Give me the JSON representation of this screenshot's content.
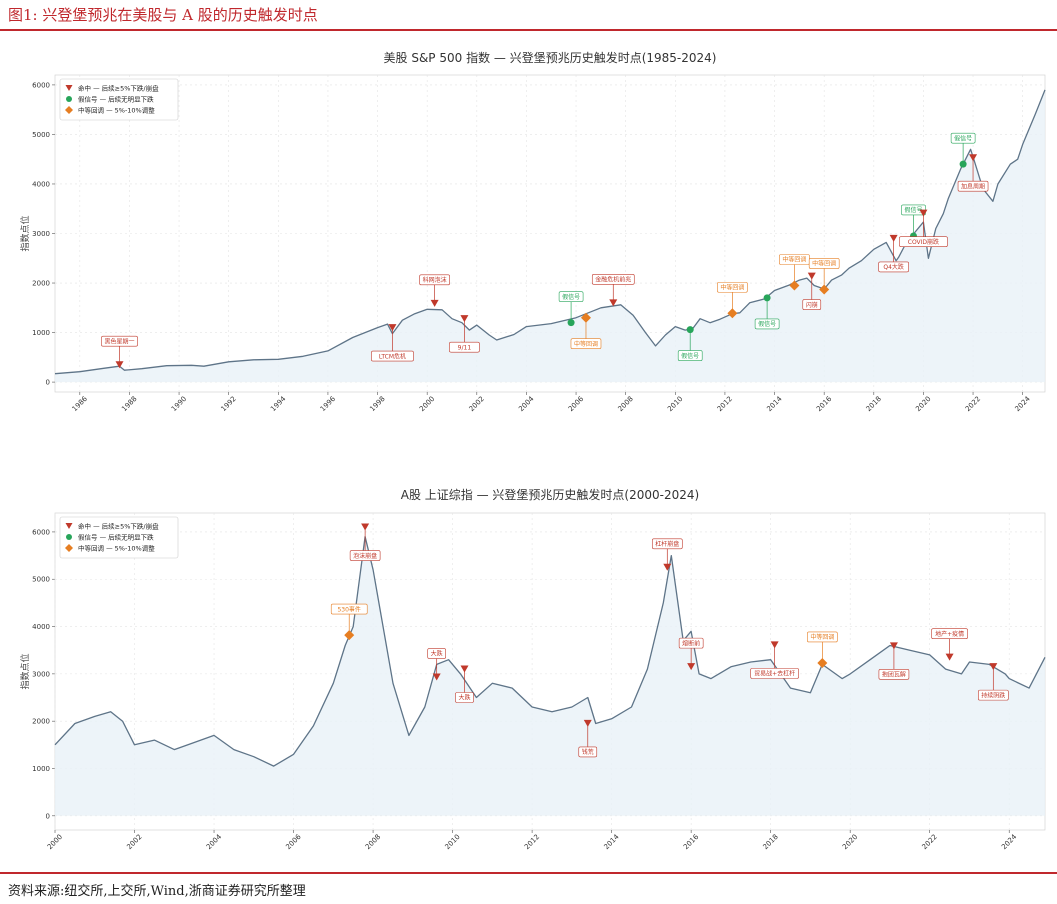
{
  "figure": {
    "title": "图1:   兴登堡预兆在美股与 A 股的历史触发时点",
    "source": "资料来源:纽交所,上交所,Wind,浙商证券研究所整理"
  },
  "colors": {
    "accent": "#c0282d",
    "hit": "#c0392b",
    "false": "#27a55a",
    "medium": "#e67e22",
    "line": "#5e7488",
    "fill": "#e8f1f8"
  },
  "legend": {
    "hit": "命中 — 后续≥5%下跌/崩盘",
    "false": "假信号 — 后续无明显下跌",
    "medium": "中等回调 — 5%-10%调整"
  },
  "chart_data": [
    {
      "type": "line",
      "title": "美股 S&P 500 指数 — 兴登堡预兆历史触发时点(1985-2024)",
      "ylabel": "指数点位",
      "xlim": [
        1985,
        2024.9
      ],
      "ylim": [
        -200,
        6200
      ],
      "grid": true,
      "legend_position": "top-left",
      "xticks": [
        1986,
        1988,
        1990,
        1992,
        1994,
        1996,
        1998,
        2000,
        2002,
        2004,
        2006,
        2008,
        2010,
        2012,
        2014,
        2016,
        2018,
        2020,
        2022,
        2024
      ],
      "yticks": [
        0,
        1000,
        2000,
        3000,
        4000,
        5000,
        6000
      ],
      "series": [
        {
          "x": [
            1985,
            1986,
            1987,
            1987.6,
            1987.8,
            1988.5,
            1989.5,
            1990.5,
            1991,
            1992,
            1993,
            1994,
            1995,
            1996,
            1997,
            1998,
            1998.4,
            1998.6,
            1999,
            1999.5,
            2000,
            2000.6,
            2001,
            2001.4,
            2001.7,
            2002,
            2002.5,
            2002.8,
            2003.5,
            2004,
            2005,
            2006,
            2007,
            2007.8,
            2008.3,
            2008.8,
            2009.2,
            2009.6,
            2010,
            2010.4,
            2010.7,
            2011,
            2011.4,
            2011.8,
            2012.3,
            2012.6,
            2013,
            2013.6,
            2014,
            2014.6,
            2015,
            2015.3,
            2015.6,
            2016,
            2016.3,
            2016.7,
            2017,
            2017.5,
            2018,
            2018.5,
            2018.9,
            2019,
            2019.4,
            2019.6,
            2020,
            2020.2,
            2020.5,
            2020.8,
            2021,
            2021.5,
            2021.9,
            2022,
            2022.4,
            2022.8,
            2023,
            2023.5,
            2023.8,
            2024,
            2024.5,
            2024.9
          ],
          "values": [
            170,
            210,
            280,
            320,
            240,
            270,
            330,
            340,
            320,
            410,
            450,
            460,
            520,
            630,
            900,
            1100,
            1170,
            980,
            1250,
            1380,
            1470,
            1460,
            1280,
            1200,
            1050,
            1150,
            950,
            850,
            960,
            1120,
            1180,
            1300,
            1500,
            1560,
            1350,
            1000,
            730,
            950,
            1120,
            1050,
            1080,
            1280,
            1200,
            1270,
            1380,
            1400,
            1600,
            1680,
            1850,
            1960,
            2060,
            2100,
            1950,
            1880,
            2060,
            2160,
            2300,
            2450,
            2680,
            2820,
            2450,
            2520,
            2900,
            2990,
            3230,
            2500,
            3100,
            3400,
            3700,
            4300,
            4700,
            4550,
            3900,
            3650,
            4000,
            4400,
            4500,
            4800,
            5400,
            5900
          ]
        }
      ],
      "events": [
        {
          "x": 1987.6,
          "y": 300,
          "kind": "hit",
          "label": "黑色星期一",
          "pos": "above"
        },
        {
          "x": 1998.6,
          "y": 1050,
          "kind": "hit",
          "label": "LTCM危机",
          "pos": "below"
        },
        {
          "x": 2000.3,
          "y": 1540,
          "kind": "hit",
          "label": "科网泡沫",
          "pos": "above"
        },
        {
          "x": 2001.5,
          "y": 1230,
          "kind": "hit",
          "label": "9/11",
          "pos": "below"
        },
        {
          "x": 2005.8,
          "y": 1200,
          "kind": "false",
          "label": "假信号",
          "pos": "above"
        },
        {
          "x": 2006.4,
          "y": 1300,
          "kind": "medium",
          "label": "中等回调",
          "pos": "below"
        },
        {
          "x": 2007.5,
          "y": 1550,
          "kind": "hit",
          "label": "金融危机前兆",
          "pos": "above"
        },
        {
          "x": 2010.6,
          "y": 1060,
          "kind": "false",
          "label": "假信号",
          "pos": "below"
        },
        {
          "x": 2012.3,
          "y": 1390,
          "kind": "medium",
          "label": "中等回调",
          "pos": "above"
        },
        {
          "x": 2013.7,
          "y": 1700,
          "kind": "false",
          "label": "假信号",
          "pos": "below"
        },
        {
          "x": 2014.8,
          "y": 1950,
          "kind": "medium",
          "label": "中等回调",
          "pos": "above"
        },
        {
          "x": 2015.5,
          "y": 2090,
          "kind": "hit",
          "label": "闪崩",
          "pos": "below"
        },
        {
          "x": 2016.0,
          "y": 1870,
          "kind": "medium",
          "label": "中等回调",
          "pos": "above"
        },
        {
          "x": 2018.8,
          "y": 2850,
          "kind": "hit",
          "label": "Q4大跌",
          "pos": "below"
        },
        {
          "x": 2019.6,
          "y": 2950,
          "kind": "false",
          "label": "假信号",
          "pos": "above"
        },
        {
          "x": 2020.0,
          "y": 3360,
          "kind": "hit",
          "label": "COVID崩跌",
          "pos": "below"
        },
        {
          "x": 2021.6,
          "y": 4400,
          "kind": "false",
          "label": "假信号",
          "pos": "above"
        },
        {
          "x": 2022.0,
          "y": 4480,
          "kind": "hit",
          "label": "加息周期",
          "pos": "below"
        }
      ]
    },
    {
      "type": "line",
      "title": "A股 上证综指 — 兴登堡预兆历史触发时点(2000-2024)",
      "ylabel": "指数点位",
      "xlim": [
        2000,
        2024.9
      ],
      "ylim": [
        -300,
        6400
      ],
      "grid": true,
      "legend_position": "top-left",
      "xticks": [
        2000,
        2002,
        2004,
        2006,
        2008,
        2010,
        2012,
        2014,
        2016,
        2018,
        2020,
        2022,
        2024
      ],
      "yticks": [
        0,
        1000,
        2000,
        3000,
        4000,
        5000,
        6000
      ],
      "series": [
        {
          "x": [
            2000,
            2000.5,
            2001,
            2001.4,
            2001.7,
            2002,
            2002.5,
            2003,
            2003.5,
            2004,
            2004.5,
            2005,
            2005.5,
            2006,
            2006.5,
            2007,
            2007.3,
            2007.5,
            2007.8,
            2008,
            2008.5,
            2008.9,
            2009.3,
            2009.6,
            2009.9,
            2010.2,
            2010.6,
            2011,
            2011.5,
            2012,
            2012.5,
            2013,
            2013.4,
            2013.6,
            2014,
            2014.5,
            2014.9,
            2015.3,
            2015.5,
            2015.8,
            2016,
            2016.2,
            2016.5,
            2017,
            2017.5,
            2018,
            2018.5,
            2019,
            2019.3,
            2019.8,
            2020,
            2020.5,
            2021,
            2021.5,
            2022,
            2022.4,
            2022.8,
            2023,
            2023.5,
            2023.9,
            2024,
            2024.5,
            2024.9
          ],
          "values": [
            1500,
            1950,
            2100,
            2200,
            2000,
            1500,
            1600,
            1400,
            1550,
            1700,
            1400,
            1250,
            1050,
            1300,
            1900,
            2800,
            3600,
            4000,
            5900,
            5200,
            2800,
            1700,
            2300,
            3200,
            3300,
            3000,
            2500,
            2800,
            2700,
            2300,
            2200,
            2300,
            2500,
            1950,
            2050,
            2300,
            3100,
            4500,
            5500,
            3700,
            3900,
            3000,
            2900,
            3150,
            3250,
            3300,
            2700,
            2600,
            3200,
            2900,
            3000,
            3300,
            3600,
            3500,
            3400,
            3100,
            3000,
            3250,
            3200,
            3000,
            2900,
            2700,
            3350
          ]
        }
      ],
      "events": [
        {
          "x": 2007.4,
          "y": 3820,
          "kind": "medium",
          "label": "530事件",
          "pos": "above"
        },
        {
          "x": 2007.8,
          "y": 6050,
          "kind": "hit",
          "label": "泡沫崩盘",
          "pos": "below"
        },
        {
          "x": 2009.6,
          "y": 2880,
          "kind": "hit",
          "label": "大跌",
          "pos": "above"
        },
        {
          "x": 2010.3,
          "y": 3050,
          "kind": "hit",
          "label": "大跌",
          "pos": "below"
        },
        {
          "x": 2013.4,
          "y": 1900,
          "kind": "hit",
          "label": "钱荒",
          "pos": "below"
        },
        {
          "x": 2015.4,
          "y": 5200,
          "kind": "hit",
          "label": "杠杆崩盘",
          "pos": "above"
        },
        {
          "x": 2016.0,
          "y": 3100,
          "kind": "hit",
          "label": "熔断前",
          "pos": "above"
        },
        {
          "x": 2018.1,
          "y": 3560,
          "kind": "hit",
          "label": "贸易战+去杠杆",
          "pos": "below"
        },
        {
          "x": 2019.3,
          "y": 3230,
          "kind": "medium",
          "label": "中等回调",
          "pos": "above"
        },
        {
          "x": 2021.1,
          "y": 3540,
          "kind": "hit",
          "label": "抱团瓦解",
          "pos": "below"
        },
        {
          "x": 2022.5,
          "y": 3300,
          "kind": "hit",
          "label": "地产+疫情",
          "pos": "above"
        },
        {
          "x": 2023.6,
          "y": 3100,
          "kind": "hit",
          "label": "持续阴跌",
          "pos": "below"
        }
      ]
    }
  ]
}
